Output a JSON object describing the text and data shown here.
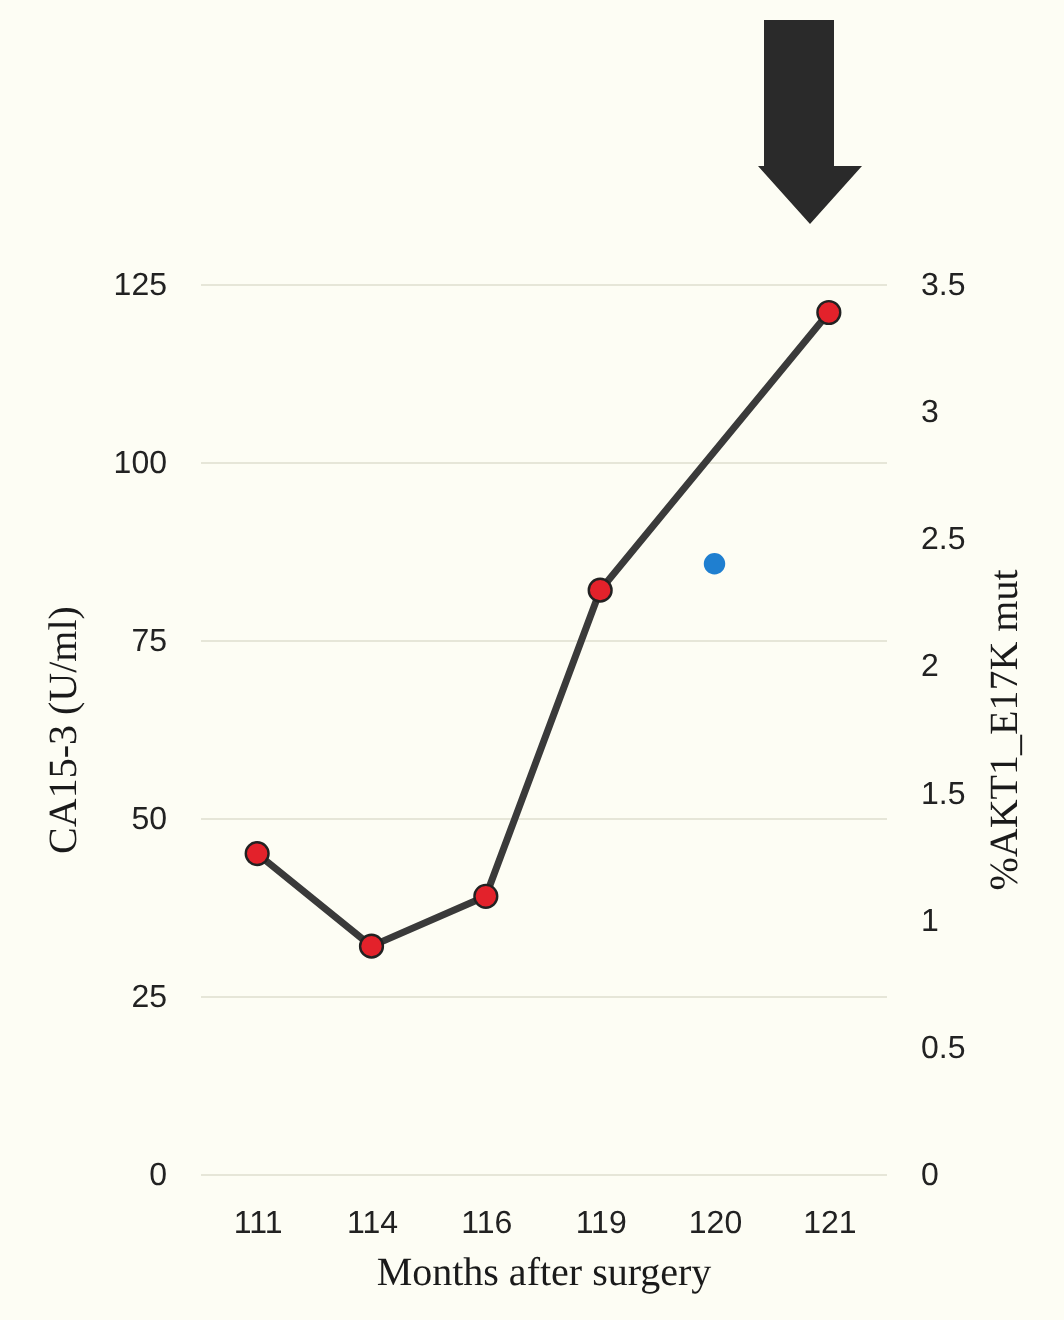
{
  "chart_data": {
    "type": "line",
    "xlabel": "Months after surgery",
    "ylabel": "CA15-3 (U/ml)",
    "y2label": "%AKT1_E17K mut",
    "categories": [
      "111",
      "114",
      "116",
      "119",
      "120",
      "121"
    ],
    "series": [
      {
        "color": "#3a3a3a",
        "colors": [
          "#e3222b",
          "#e3222b",
          "#e3222b",
          "#e3222b",
          "#e3222b"
        ],
        "x": [
          "111",
          "114",
          "116",
          "119",
          "121"
        ],
        "values": [
          45,
          32,
          39,
          82,
          121
        ]
      },
      {
        "type": "scatter",
        "axis": "y2",
        "color": "#1f7fd0",
        "x": [
          "120"
        ],
        "values": [
          2.4
        ]
      }
    ],
    "ylim": [
      0,
      125
    ],
    "yticks": [
      0,
      25,
      50,
      75,
      100,
      125
    ],
    "y2lim": [
      0,
      3.5
    ],
    "y2ticks": [
      0,
      0.5,
      1,
      1.5,
      2,
      2.5,
      3,
      3.5
    ],
    "grid": "y",
    "marker": "circle"
  }
}
